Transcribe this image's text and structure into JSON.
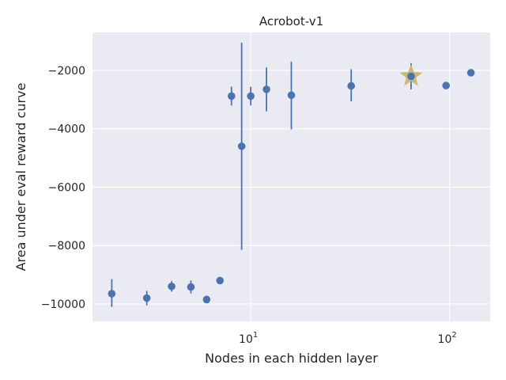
{
  "chart_data": {
    "type": "scatter",
    "title": "Acrobot-v1",
    "xlabel": "Nodes in each hidden layer",
    "ylabel": "Area under eval reward curve",
    "x_scale": "log",
    "xlim": [
      1.6,
      160
    ],
    "ylim": [
      -10600,
      -700
    ],
    "x_tick_labels": [
      {
        "value": 10,
        "base": "10",
        "exp": "1"
      },
      {
        "value": 100,
        "base": "10",
        "exp": "2"
      }
    ],
    "y_ticks": [
      -10000,
      -8000,
      -6000,
      -4000,
      -2000
    ],
    "y_tick_labels": [
      "−10000",
      "−8000",
      "−6000",
      "−4000",
      "−2000"
    ],
    "grid": true,
    "colors": {
      "background": "#eaeaf2",
      "grid": "#ffffff",
      "points": "#4c72b0",
      "star": "#ccb974"
    },
    "points": [
      {
        "x": 2,
        "y": -9650,
        "err_low": -10100,
        "err_high": -9150
      },
      {
        "x": 3,
        "y": -9800,
        "err_low": -10050,
        "err_high": -9550
      },
      {
        "x": 4,
        "y": -9400,
        "err_low": -9580,
        "err_high": -9220
      },
      {
        "x": 5,
        "y": -9420,
        "err_low": -9640,
        "err_high": -9200
      },
      {
        "x": 6,
        "y": -9850,
        "err_low": -9850,
        "err_high": -9850
      },
      {
        "x": 7,
        "y": -9200,
        "err_low": -9200,
        "err_high": -9200
      },
      {
        "x": 8,
        "y": -2880,
        "err_low": -3200,
        "err_high": -2560
      },
      {
        "x": 9,
        "y": -4600,
        "err_low": -8150,
        "err_high": -1050
      },
      {
        "x": 10,
        "y": -2880,
        "err_low": -3200,
        "err_high": -2560
      },
      {
        "x": 12,
        "y": -2650,
        "err_low": -3400,
        "err_high": -1900
      },
      {
        "x": 16,
        "y": -2850,
        "err_low": -4020,
        "err_high": -1700
      },
      {
        "x": 32,
        "y": -2530,
        "err_low": -3060,
        "err_high": -1960
      },
      {
        "x": 64,
        "y": -2200,
        "err_low": -2650,
        "err_high": -1750
      },
      {
        "x": 96,
        "y": -2520,
        "err_low": -2520,
        "err_high": -2520
      },
      {
        "x": 128,
        "y": -2080,
        "err_low": -2080,
        "err_high": -2080
      }
    ],
    "best": {
      "x": 64,
      "y": -2200
    }
  }
}
